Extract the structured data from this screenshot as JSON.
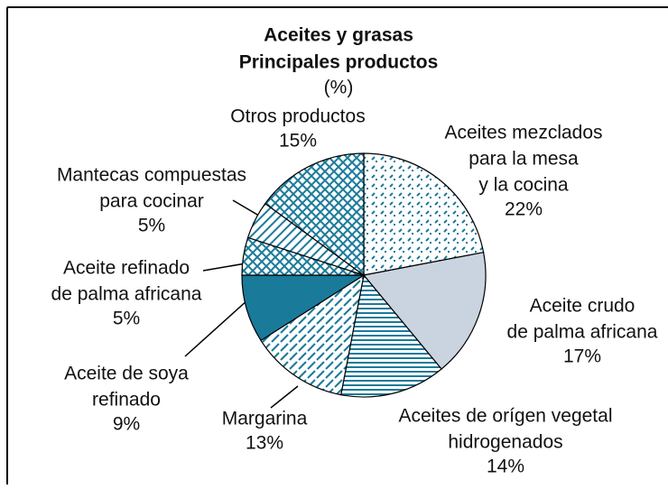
{
  "chart_data": {
    "type": "pie",
    "title": "Aceites y grasas",
    "subtitle": [
      "Principales productos",
      "(%)"
    ],
    "categories": [
      [
        "Aceites mezclados",
        "para la mesa",
        "y la cocina"
      ],
      [
        "Aceite crudo",
        "de palma africana"
      ],
      [
        "Aceites de orígen vegetal",
        "hidrogenados"
      ],
      [
        "Margarina"
      ],
      [
        "Aceite de soya",
        "refinado"
      ],
      [
        "Aceite refinado",
        "de palma africana"
      ],
      [
        "Mantecas compuestas",
        "para cocinar"
      ],
      [
        "Otros productos"
      ]
    ],
    "values": [
      22,
      17,
      14,
      13,
      9,
      5,
      5,
      15
    ],
    "value_labels": [
      "22%",
      "17%",
      "14%",
      "13%",
      "9%",
      "5%",
      "5%",
      "15%"
    ],
    "colors": [
      "#1a7a9a",
      "#c9d4e0",
      "#1a7a9a",
      "#1a7a9a",
      "#1a7a9a",
      "#1a7a9a",
      "#1a7a9a",
      "#1a7a9a"
    ],
    "patterns": [
      "dots",
      "solid",
      "hlines",
      "dashes",
      "solid",
      "cross",
      "diag",
      "cross"
    ]
  }
}
